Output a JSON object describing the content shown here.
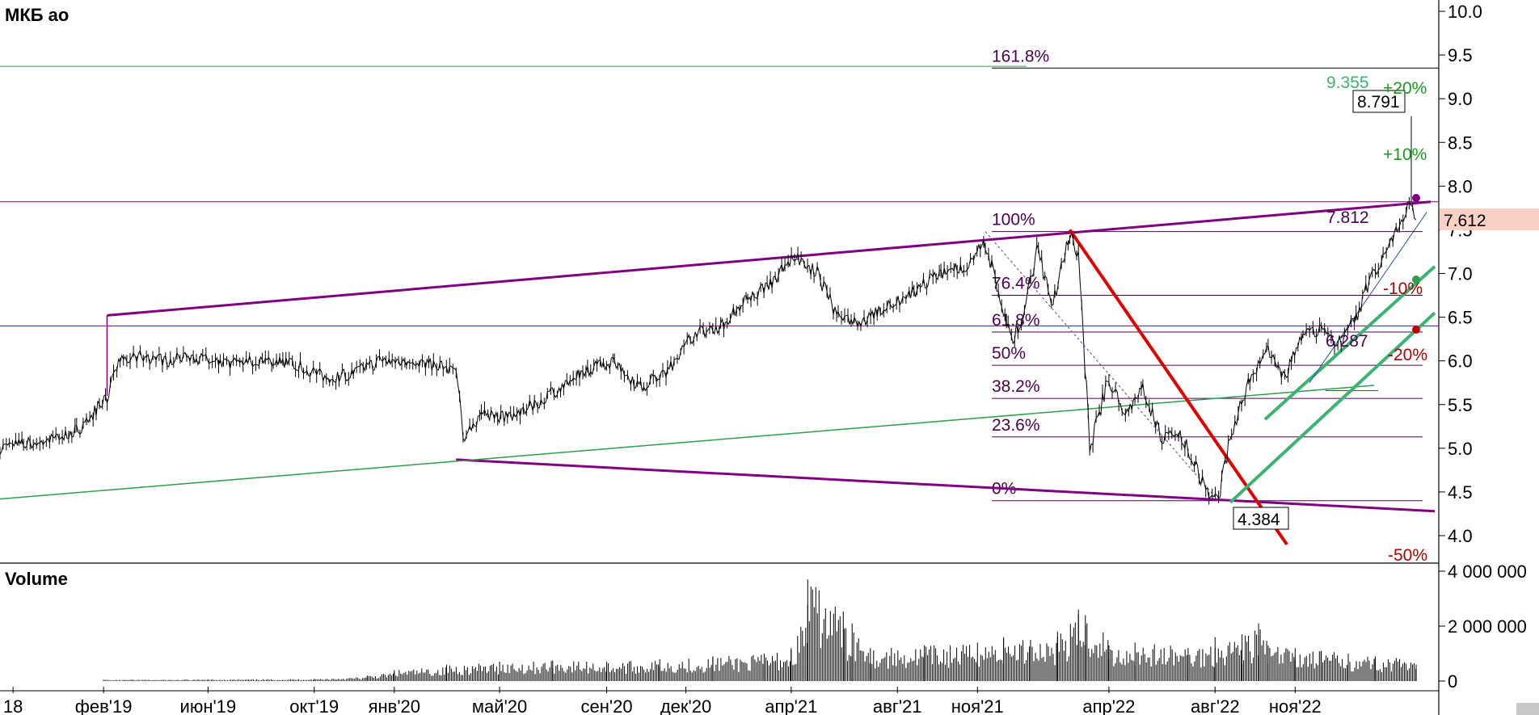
{
  "chart_data": [
    {
      "type": "line",
      "title": "МКБ ао",
      "xlabel": "",
      "ylabel": "",
      "ylim": [
        3.85,
        10.1
      ],
      "y_ticks": [
        "10.0",
        "9.5",
        "9.0",
        "8.5",
        "8.0",
        "7.5",
        "7.0",
        "6.5",
        "6.0",
        "5.5",
        "5.0",
        "4.5",
        "4.0"
      ],
      "y_tick_values": [
        10.0,
        9.5,
        9.0,
        8.5,
        8.0,
        7.5,
        7.0,
        6.5,
        6.0,
        5.5,
        5.0,
        4.5,
        4.0
      ],
      "x_ticks": [
        "18",
        "фев'19",
        "июн'19",
        "окт'19",
        "янв'20",
        "май'20",
        "сен'20",
        "дек'20",
        "апр'21",
        "авг'21",
        "ноя'21",
        "апр'22",
        "авг'22",
        "ноя'22"
      ],
      "x_tick_dates": [
        "2018-10-20",
        "2019-02-01",
        "2019-06-01",
        "2019-10-01",
        "2020-01-01",
        "2020-05-01",
        "2020-09-01",
        "2020-12-01",
        "2021-04-01",
        "2021-08-01",
        "2021-11-01",
        "2022-04-01",
        "2022-08-01",
        "2022-11-01"
      ],
      "x_range": [
        "2018-10-05",
        "2023-04-15"
      ],
      "series": [
        {
          "x": [
            "2018-10-05",
            "2018-11-01",
            "2018-12-01",
            "2019-01-01",
            "2019-01-20",
            "2019-02-05",
            "2019-02-20",
            "2019-03-15",
            "2019-04-15",
            "2019-05-15",
            "2019-06-15",
            "2019-07-15",
            "2019-08-15",
            "2019-09-15",
            "2019-10-15",
            "2019-11-15",
            "2019-12-15",
            "2020-01-15",
            "2020-02-15",
            "2020-03-12",
            "2020-03-20",
            "2020-04-10",
            "2020-05-10",
            "2020-06-10",
            "2020-07-10",
            "2020-08-10",
            "2020-09-10",
            "2020-10-10",
            "2020-11-10",
            "2020-12-10",
            "2021-01-10",
            "2021-02-10",
            "2021-03-10",
            "2021-04-05",
            "2021-05-01",
            "2021-05-25",
            "2021-06-20",
            "2021-07-20",
            "2021-08-20",
            "2021-09-20",
            "2021-10-20",
            "2021-11-10",
            "2021-11-25",
            "2021-12-10",
            "2021-12-25",
            "2022-01-10",
            "2022-01-25",
            "2022-02-15",
            "2022-02-25",
            "2022-03-10",
            "2022-04-01",
            "2022-04-20",
            "2022-05-10",
            "2022-06-01",
            "2022-06-20",
            "2022-07-10",
            "2022-07-25",
            "2022-08-05",
            "2022-08-20",
            "2022-09-10",
            "2022-10-01",
            "2022-10-20",
            "2022-11-10",
            "2022-12-01",
            "2022-12-20",
            "2023-01-10",
            "2023-01-25",
            "2023-02-10",
            "2023-02-25",
            "2023-03-05",
            "2023-03-12",
            "2023-03-20"
          ],
          "y": [
            5.0,
            5.05,
            5.1,
            5.2,
            5.4,
            5.6,
            6.0,
            6.05,
            6.0,
            6.05,
            5.95,
            6.0,
            6.0,
            5.95,
            5.8,
            5.85,
            6.0,
            6.0,
            5.95,
            5.9,
            5.1,
            5.4,
            5.35,
            5.5,
            5.7,
            5.9,
            6.0,
            5.7,
            5.9,
            6.3,
            6.4,
            6.7,
            6.9,
            7.2,
            7.0,
            6.5,
            6.45,
            6.6,
            6.8,
            7.0,
            7.1,
            7.35,
            6.8,
            6.2,
            6.6,
            7.3,
            6.6,
            7.45,
            7.1,
            5.0,
            5.8,
            5.4,
            5.7,
            5.1,
            5.2,
            4.8,
            4.45,
            4.384,
            5.2,
            5.8,
            6.1,
            5.8,
            6.3,
            6.35,
            6.2,
            6.5,
            6.9,
            7.2,
            7.5,
            7.6,
            7.8,
            7.612
          ],
          "color": "#000000"
        }
      ],
      "fib_levels": [
        {
          "label": "161.8%",
          "value": 9.35
        },
        {
          "label": "100%",
          "value": 7.48
        },
        {
          "label": "76.4%",
          "value": 6.75
        },
        {
          "label": "61.8%",
          "value": 6.33
        },
        {
          "label": "50%",
          "value": 5.95
        },
        {
          "label": "38.2%",
          "value": 5.57
        },
        {
          "label": "23.6%",
          "value": 5.13
        },
        {
          "label": "0%",
          "value": 4.4
        }
      ],
      "fib_start_date": "2021-11-10",
      "annotations": {
        "high_label": "9.355",
        "last_high_box": "8.791",
        "level_label": "7.812",
        "last_price_box": "7.612",
        "low_box": "4.384",
        "mid_label": "6.287",
        "pct_plus20": "+20%",
        "pct_plus10": "+10%",
        "pct_minus10": "-10%",
        "pct_minus20": "-20%",
        "pct_minus50": "-50%"
      },
      "colors": {
        "price": "#000000",
        "channel": "#800080",
        "fib": "#4b0050",
        "green_line": "#2e9e4f",
        "thick_green": "#3cb371",
        "red_line": "#e00000",
        "plus_pct": "#1a9a1a",
        "minus_pct": "#b00000",
        "last_price_bg": "#f9d0c4",
        "high_label": "#3cb371"
      },
      "grid": false,
      "legend": "none"
    },
    {
      "type": "bar",
      "title": "Volume",
      "ylim": [
        0,
        4200000
      ],
      "y_ticks": [
        "4 000 000",
        "2 000 000",
        "0"
      ],
      "y_tick_values": [
        4000000,
        2000000,
        0
      ],
      "x_range": [
        "2018-10-05",
        "2023-04-15"
      ],
      "x": [
        "2019-02-01",
        "2019-06-01",
        "2019-10-01",
        "2019-12-01",
        "2020-01-01",
        "2020-03-01",
        "2020-05-01",
        "2020-07-01",
        "2020-09-01",
        "2020-11-01",
        "2021-01-01",
        "2021-03-01",
        "2021-04-01",
        "2021-04-20",
        "2021-06-01",
        "2021-06-10",
        "2021-07-01",
        "2021-09-01",
        "2021-11-01",
        "2021-12-01",
        "2022-01-01",
        "2022-02-01",
        "2022-02-25",
        "2022-03-05",
        "2022-04-01",
        "2022-05-01",
        "2022-07-01",
        "2022-08-01",
        "2022-09-01",
        "2022-09-20",
        "2022-10-01",
        "2022-11-01",
        "2022-12-01",
        "2023-01-01",
        "2023-02-01",
        "2023-03-01",
        "2023-03-20"
      ],
      "values": [
        50000,
        60000,
        80000,
        200000,
        400000,
        600000,
        700000,
        750000,
        700000,
        800000,
        900000,
        1000000,
        1200000,
        3700000,
        1900000,
        2100000,
        1200000,
        1300000,
        1400000,
        1600000,
        1500000,
        1800000,
        2600000,
        2400000,
        1300000,
        1400000,
        1200000,
        1600000,
        1700000,
        2100000,
        1300000,
        1200000,
        1100000,
        1000000,
        900000,
        800000,
        600000
      ],
      "color": "#000000"
    }
  ]
}
